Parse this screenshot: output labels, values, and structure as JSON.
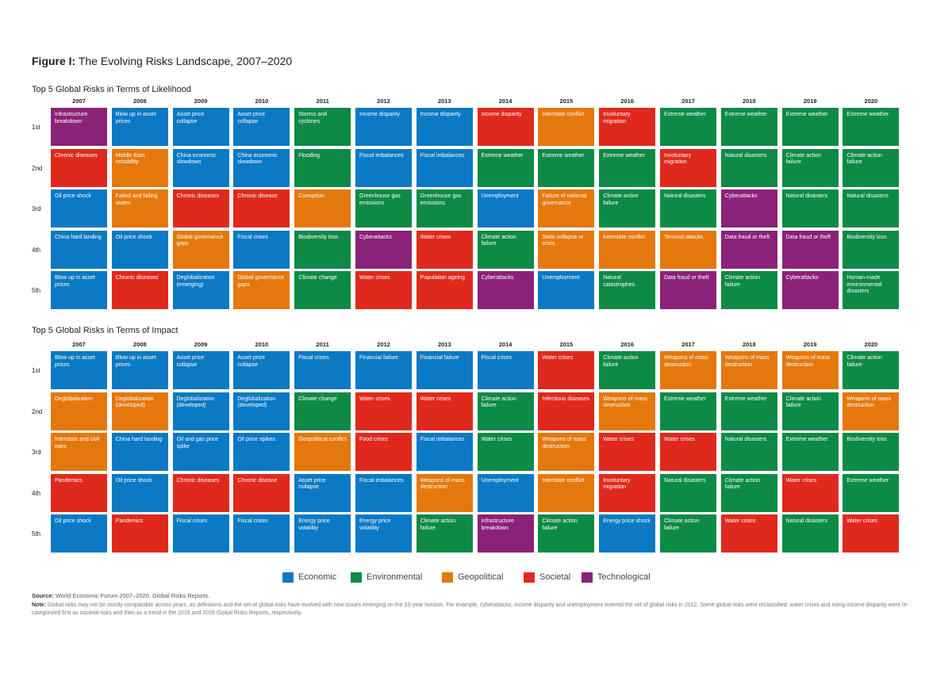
{
  "figure": {
    "title_bold": "Figure I:",
    "title_rest": " The Evolving Risks Landscape, 2007–2020"
  },
  "colors": {
    "Economic": "#0b79c4",
    "Environmental": "#0e8a47",
    "Geopolitical": "#e5780c",
    "Societal": "#e0291d",
    "Technological": "#8b2279"
  },
  "legend": [
    "Economic",
    "Environmental",
    "Geopolitical",
    "Societal",
    "Technological"
  ],
  "source": {
    "label": "Source:",
    "text": " World Economic Forum 2007–2020, Global Risks Reports."
  },
  "notes": {
    "label": "Note:",
    "text": " Global risks may not be strictly comparable across years, as definitions and the set of global risks have evolved with new issues emerging on the 10-year horizon. For example, cyberattacks, income disparity and unemployment entered the set of global risks in 2012. Some global risks were reclassified: water crises and rising income disparity were re-categorized first as societal risks and then as a trend in the 2015 and 2016 Global Risks Reports, respectively."
  },
  "chart_data": [
    {
      "type": "table",
      "title": "Top 5 Global Risks in Terms of Likelihood",
      "years": [
        "2007",
        "2008",
        "2009",
        "2010",
        "2011",
        "2012",
        "2013",
        "2014",
        "2015",
        "2016",
        "2017",
        "2018",
        "2019",
        "2020"
      ],
      "ranks": [
        "1st",
        "2nd",
        "3rd",
        "4th",
        "5th"
      ],
      "cells": [
        [
          {
            "label": "Infrastructure breakdown",
            "category": "Technological"
          },
          {
            "label": "Blow up in asset prices",
            "category": "Economic"
          },
          {
            "label": "Asset price collapse",
            "category": "Economic"
          },
          {
            "label": "Asset price collapse",
            "category": "Economic"
          },
          {
            "label": "Storms and cyclones",
            "category": "Environmental"
          },
          {
            "label": "Income disparity",
            "category": "Economic"
          },
          {
            "label": "Income disparity",
            "category": "Economic"
          },
          {
            "label": "Income disparity",
            "category": "Societal"
          },
          {
            "label": "Interstate conflict",
            "category": "Geopolitical"
          },
          {
            "label": "Involuntary migration",
            "category": "Societal"
          },
          {
            "label": "Extreme weather",
            "category": "Environmental"
          },
          {
            "label": "Extreme weather",
            "category": "Environmental"
          },
          {
            "label": "Extreme weather",
            "category": "Environmental"
          },
          {
            "label": "Extreme weather",
            "category": "Environmental"
          }
        ],
        [
          {
            "label": "Chronic diseases",
            "category": "Societal"
          },
          {
            "label": "Middle East instability",
            "category": "Geopolitical"
          },
          {
            "label": "China economic slowdown",
            "category": "Economic"
          },
          {
            "label": "China economic slowdown",
            "category": "Economic"
          },
          {
            "label": "Flooding",
            "category": "Environmental"
          },
          {
            "label": "Fiscal imbalances",
            "category": "Economic"
          },
          {
            "label": "Fiscal imbalances",
            "category": "Economic"
          },
          {
            "label": "Extreme weather",
            "category": "Environmental"
          },
          {
            "label": "Extreme weather",
            "category": "Environmental"
          },
          {
            "label": "Extreme weather",
            "category": "Environmental"
          },
          {
            "label": "Involuntary migration",
            "category": "Societal"
          },
          {
            "label": "Natural disasters",
            "category": "Environmental"
          },
          {
            "label": "Climate action failure",
            "category": "Environmental"
          },
          {
            "label": "Climate action failure",
            "category": "Environmental"
          }
        ],
        [
          {
            "label": "Oil price shock",
            "category": "Economic"
          },
          {
            "label": "Failed and failing states",
            "category": "Geopolitical"
          },
          {
            "label": "Chronic diseases",
            "category": "Societal"
          },
          {
            "label": "Chronic disease",
            "category": "Societal"
          },
          {
            "label": "Corruption",
            "category": "Geopolitical"
          },
          {
            "label": "Greenhouse gas emissions",
            "category": "Environmental"
          },
          {
            "label": "Greenhouse gas emissions",
            "category": "Environmental"
          },
          {
            "label": "Unemployment",
            "category": "Economic"
          },
          {
            "label": "Failure of national governance",
            "category": "Geopolitical"
          },
          {
            "label": "Climate action failure",
            "category": "Environmental"
          },
          {
            "label": "Natural disasters",
            "category": "Environmental"
          },
          {
            "label": "Cyberattacks",
            "category": "Technological"
          },
          {
            "label": "Natural disasters",
            "category": "Environmental"
          },
          {
            "label": "Natural disasters",
            "category": "Environmental"
          }
        ],
        [
          {
            "label": "China hard landing",
            "category": "Economic"
          },
          {
            "label": "Oil price shock",
            "category": "Economic"
          },
          {
            "label": "Global governance gaps",
            "category": "Geopolitical"
          },
          {
            "label": "Fiscal crises",
            "category": "Economic"
          },
          {
            "label": "Biodiversity loss",
            "category": "Environmental"
          },
          {
            "label": "Cyberattacks",
            "category": "Technological"
          },
          {
            "label": "Water crises",
            "category": "Societal"
          },
          {
            "label": "Climate action failure",
            "category": "Environmental"
          },
          {
            "label": "State collapse or crisis",
            "category": "Geopolitical"
          },
          {
            "label": "Interstate conflict",
            "category": "Geopolitical"
          },
          {
            "label": "Terrorist attacks",
            "category": "Geopolitical"
          },
          {
            "label": "Data fraud or theft",
            "category": "Technological"
          },
          {
            "label": "Data fraud or theft",
            "category": "Technological"
          },
          {
            "label": "Biodiversity loss",
            "category": "Environmental"
          }
        ],
        [
          {
            "label": "Blow up in asset prices",
            "category": "Economic"
          },
          {
            "label": "Chronic diseases",
            "category": "Societal"
          },
          {
            "label": "Deglobalization (emerging)",
            "category": "Economic"
          },
          {
            "label": "Global governance gaps",
            "category": "Geopolitical"
          },
          {
            "label": "Climate change",
            "category": "Environmental"
          },
          {
            "label": "Water crises",
            "category": "Societal"
          },
          {
            "label": "Population ageing",
            "category": "Societal"
          },
          {
            "label": "Cyberattacks",
            "category": "Technological"
          },
          {
            "label": "Unemployment",
            "category": "Economic"
          },
          {
            "label": "Natural catastrophes",
            "category": "Environmental"
          },
          {
            "label": "Data fraud or theft",
            "category": "Technological"
          },
          {
            "label": "Climate action failure",
            "category": "Environmental"
          },
          {
            "label": "Cyberattacks",
            "category": "Technological"
          },
          {
            "label": "Human-made environmental disasters",
            "category": "Environmental"
          }
        ]
      ]
    },
    {
      "type": "table",
      "title": "Top 5 Global Risks in Terms of Impact",
      "years": [
        "2007",
        "2008",
        "2009",
        "2010",
        "2011",
        "2012",
        "2013",
        "2014",
        "2015",
        "2016",
        "2017",
        "2018",
        "2019",
        "2020"
      ],
      "ranks": [
        "1st",
        "2nd",
        "3rd",
        "4th",
        "5th"
      ],
      "cells": [
        [
          {
            "label": "Blow up in asset prices",
            "category": "Economic"
          },
          {
            "label": "Blow up in asset prices",
            "category": "Economic"
          },
          {
            "label": "Asset price collapse",
            "category": "Economic"
          },
          {
            "label": "Asset price collapse",
            "category": "Economic"
          },
          {
            "label": "Fiscal crises",
            "category": "Economic"
          },
          {
            "label": "Financial failure",
            "category": "Economic"
          },
          {
            "label": "Financial failure",
            "category": "Economic"
          },
          {
            "label": "Fiscal crises",
            "category": "Economic"
          },
          {
            "label": "Water crises",
            "category": "Societal"
          },
          {
            "label": "Climate action failure",
            "category": "Environmental"
          },
          {
            "label": "Weapons of mass destruction",
            "category": "Geopolitical"
          },
          {
            "label": "Weapons of mass destruction",
            "category": "Geopolitical"
          },
          {
            "label": "Weapons of mass destruction",
            "category": "Geopolitical"
          },
          {
            "label": "Climate action failure",
            "category": "Environmental"
          }
        ],
        [
          {
            "label": "Deglobalization",
            "category": "Geopolitical"
          },
          {
            "label": "Deglobalization (developed)",
            "category": "Geopolitical"
          },
          {
            "label": "Deglobalization (developed)",
            "category": "Economic"
          },
          {
            "label": "Deglobalization (developed)",
            "category": "Economic"
          },
          {
            "label": "Climate change",
            "category": "Environmental"
          },
          {
            "label": "Water crises",
            "category": "Societal"
          },
          {
            "label": "Water crises",
            "category": "Societal"
          },
          {
            "label": "Climate action failure",
            "category": "Environmental"
          },
          {
            "label": "Infectious diseases",
            "category": "Societal"
          },
          {
            "label": "Weapons of mass destruction",
            "category": "Geopolitical"
          },
          {
            "label": "Extreme weather",
            "category": "Environmental"
          },
          {
            "label": "Extreme weather",
            "category": "Environmental"
          },
          {
            "label": "Climate action failure",
            "category": "Environmental"
          },
          {
            "label": "Weapons of mass destruction",
            "category": "Geopolitical"
          }
        ],
        [
          {
            "label": "Interstate and civil wars",
            "category": "Geopolitical"
          },
          {
            "label": "China hard landing",
            "category": "Economic"
          },
          {
            "label": "Oil and gas price spike",
            "category": "Economic"
          },
          {
            "label": "Oil price spikes",
            "category": "Economic"
          },
          {
            "label": "Geopolitical conflict",
            "category": "Geopolitical"
          },
          {
            "label": "Food crises",
            "category": "Societal"
          },
          {
            "label": "Fiscal imbalances",
            "category": "Economic"
          },
          {
            "label": "Water crises",
            "category": "Environmental"
          },
          {
            "label": "Weapons of mass destruction",
            "category": "Geopolitical"
          },
          {
            "label": "Water crises",
            "category": "Societal"
          },
          {
            "label": "Water crises",
            "category": "Societal"
          },
          {
            "label": "Natural disasters",
            "category": "Environmental"
          },
          {
            "label": "Extreme weather",
            "category": "Environmental"
          },
          {
            "label": "Biodiversity loss",
            "category": "Environmental"
          }
        ],
        [
          {
            "label": "Pandemics",
            "category": "Societal"
          },
          {
            "label": "Oil price shock",
            "category": "Economic"
          },
          {
            "label": "Chronic diseases",
            "category": "Societal"
          },
          {
            "label": "Chronic disease",
            "category": "Societal"
          },
          {
            "label": "Asset price collapse",
            "category": "Economic"
          },
          {
            "label": "Fiscal imbalances",
            "category": "Economic"
          },
          {
            "label": "Weapons of mass destruction",
            "category": "Geopolitical"
          },
          {
            "label": "Unemployment",
            "category": "Economic"
          },
          {
            "label": "Interstate conflict",
            "category": "Geopolitical"
          },
          {
            "label": "Involuntary migration",
            "category": "Societal"
          },
          {
            "label": "Natural disasters",
            "category": "Environmental"
          },
          {
            "label": "Climate action failure",
            "category": "Environmental"
          },
          {
            "label": "Water crises",
            "category": "Societal"
          },
          {
            "label": "Extreme weather",
            "category": "Environmental"
          }
        ],
        [
          {
            "label": "Oil price shock",
            "category": "Economic"
          },
          {
            "label": "Pandemics",
            "category": "Societal"
          },
          {
            "label": "Fiscal crises",
            "category": "Economic"
          },
          {
            "label": "Fiscal crises",
            "category": "Economic"
          },
          {
            "label": "Energy price volatility",
            "category": "Economic"
          },
          {
            "label": "Energy price volatility",
            "category": "Economic"
          },
          {
            "label": "Climate action failure",
            "category": "Environmental"
          },
          {
            "label": "Infrastructure breakdown",
            "category": "Technological"
          },
          {
            "label": "Climate action failure",
            "category": "Environmental"
          },
          {
            "label": "Energy price shock",
            "category": "Economic"
          },
          {
            "label": "Climate action failure",
            "category": "Environmental"
          },
          {
            "label": "Water crises",
            "category": "Societal"
          },
          {
            "label": "Natural disasters",
            "category": "Environmental"
          },
          {
            "label": "Water crises",
            "category": "Societal"
          }
        ]
      ]
    }
  ]
}
